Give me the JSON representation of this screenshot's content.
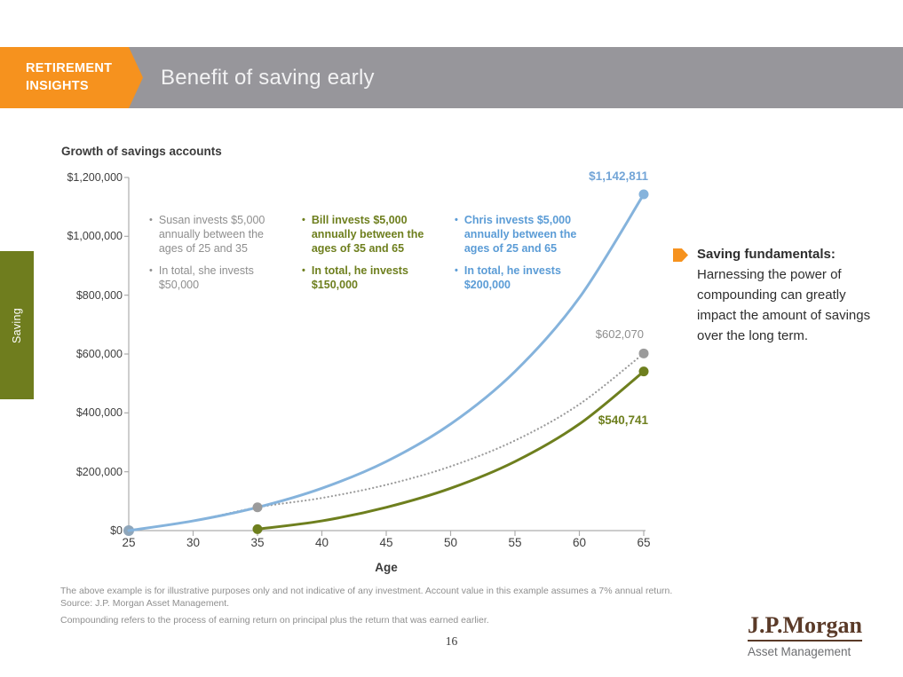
{
  "header": {
    "badge_line1": "RETIREMENT",
    "badge_line2": "INSIGHTS",
    "title": "Benefit of saving early"
  },
  "side_tab": {
    "label": "Saving"
  },
  "chart": {
    "title": "Growth of savings accounts",
    "x_axis_title": "Age",
    "y_ticks": [
      "$1,200,000",
      "$1,000,000",
      "$800,000",
      "$600,000",
      "$400,000",
      "$200,000",
      "$0"
    ],
    "x_ticks": [
      "25",
      "30",
      "35",
      "40",
      "45",
      "50",
      "55",
      "60",
      "65"
    ],
    "end_labels": {
      "chris": "$1,142,811",
      "susan": "$602,070",
      "bill": "$540,741"
    }
  },
  "chart_data": {
    "type": "line",
    "title": "Growth of savings accounts",
    "xlabel": "Age",
    "ylabel": "",
    "x": [
      25,
      30,
      35,
      40,
      45,
      50,
      55,
      60,
      65
    ],
    "xlim": [
      25,
      65
    ],
    "ylim": [
      0,
      1200000
    ],
    "grid": false,
    "legend_position": "none",
    "assumption": "7% annual return, $5,000 annual contributions",
    "series": [
      {
        "name": "Susan",
        "color": "#9B9B9B",
        "style": "dotted",
        "width": 2.2,
        "values": [
          0,
          32920,
          79092,
          110930,
          155588,
          218221,
          306062,
          429268,
          602070
        ],
        "marker_ages": [
          35,
          65
        ],
        "end_label": "$602,070"
      },
      {
        "name": "Bill",
        "color": "#6E7F1E",
        "style": "solid",
        "width": 3,
        "values": [
          null,
          null,
          5000,
          32920,
          79092,
          143851,
          234679,
          362069,
          540741
        ],
        "marker_ages": [
          35,
          65
        ],
        "end_label": "$540,741"
      },
      {
        "name": "Chris",
        "color": "#85B3DC",
        "style": "solid",
        "width": 3,
        "values": [
          0,
          32920,
          79092,
          143851,
          234679,
          362069,
          540740,
          791337,
          1142811
        ],
        "marker_ages": [
          65
        ],
        "end_label": "$1,142,811"
      }
    ],
    "extra_markers": [
      {
        "age": 25,
        "value": 0,
        "color": "#8FA6BA"
      }
    ]
  },
  "annotations": {
    "susan": {
      "bullet1": "Susan invests $5,000 annually between the ages of 25 and 35",
      "bullet2": "In total, she invests $50,000"
    },
    "bill": {
      "bullet1": "Bill invests $5,000 annually between the ages of 35 and 65",
      "bullet2": "In total, he invests $150,000"
    },
    "chris": {
      "bullet1": "Chris invests $5,000 annually between the ages of 25 and 65",
      "bullet2": "In total, he invests $200,000"
    }
  },
  "callout": {
    "title": "Saving fundamentals:",
    "body": "Harnessing the power of compounding can greatly impact the amount of savings over the long term."
  },
  "footnotes": {
    "line1": "The above example is for illustrative purposes only and not indicative of any investment. Account value in this example assumes a 7% annual return.",
    "line2": "Source: J.P. Morgan Asset Management.",
    "line3": "Compounding refers to the process of earning return on principal plus the return that was earned earlier."
  },
  "page_number": "16",
  "logo": {
    "wordmark": "J.P.Morgan",
    "subtitle": "Asset Management"
  },
  "colors": {
    "orange": "#F6921E",
    "header_gray": "#97969B",
    "olive": "#6E7F1E",
    "blue": "#85B3DC",
    "gray": "#9B9B9B",
    "axis": "#ADADAD"
  }
}
